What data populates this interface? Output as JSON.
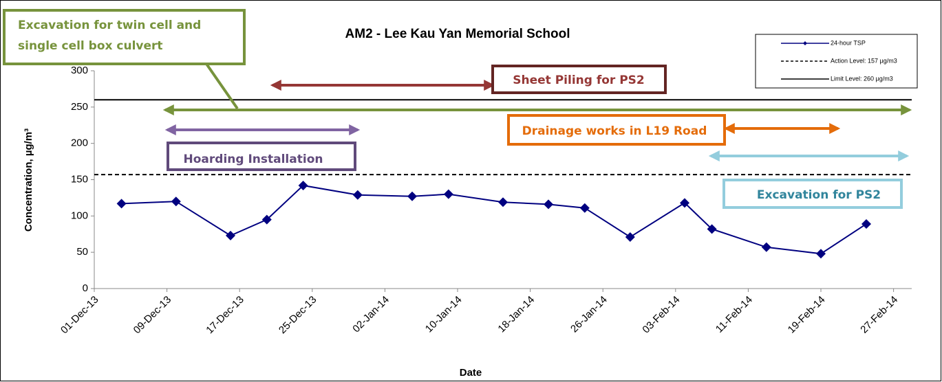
{
  "chart_data": {
    "type": "line",
    "title": "AM2 - Lee Kau Yan Memorial School",
    "x_label": "Date",
    "y_label": "Concentration, µg/m³",
    "x": [
      "2013-12-04",
      "2013-12-10",
      "2013-12-16",
      "2013-12-20",
      "2013-12-24",
      "2013-12-30",
      "2014-01-05",
      "2014-01-09",
      "2014-01-15",
      "2014-01-20",
      "2014-01-24",
      "2014-01-29",
      "2014-02-04",
      "2014-02-07",
      "2014-02-13",
      "2014-02-19",
      "2014-02-24"
    ],
    "series": [
      {
        "name": "24-hour TSP",
        "color": "#000080",
        "values": [
          117,
          120,
          73,
          95,
          142,
          129,
          127,
          130,
          119,
          116,
          111,
          71,
          118,
          82,
          57,
          48,
          89
        ]
      }
    ],
    "reference_lines": [
      {
        "name": "Action Level: 157 µg/m3",
        "value": 157,
        "color": "#000000",
        "dashed": true
      },
      {
        "name": "Limit Level: 260 µg/m3",
        "value": 260,
        "color": "#000000",
        "dashed": false
      }
    ],
    "xlim": [
      "2013-12-01",
      "2014-03-01"
    ],
    "xticks": [
      {
        "value": "2013-12-01",
        "label": "01-Dec-13"
      },
      {
        "value": "2013-12-09",
        "label": "09-Dec-13"
      },
      {
        "value": "2013-12-17",
        "label": "17-Dec-13"
      },
      {
        "value": "2013-12-25",
        "label": "25-Dec-13"
      },
      {
        "value": "2014-01-02",
        "label": "02-Jan-14"
      },
      {
        "value": "2014-01-10",
        "label": "10-Jan-14"
      },
      {
        "value": "2014-01-18",
        "label": "18-Jan-14"
      },
      {
        "value": "2014-01-26",
        "label": "26-Jan-14"
      },
      {
        "value": "2014-02-03",
        "label": "03-Feb-14"
      },
      {
        "value": "2014-02-11",
        "label": "11-Feb-14"
      },
      {
        "value": "2014-02-19",
        "label": "19-Feb-14"
      },
      {
        "value": "2014-02-27",
        "label": "27-Feb-14"
      }
    ],
    "ylim": [
      0,
      300
    ],
    "yticks": [
      0,
      50,
      100,
      150,
      200,
      250,
      300
    ],
    "grid": false,
    "legend": "top-right",
    "annotations": [
      [
        "Excavation for twin cell and",
        "single cell box culvert"
      ],
      [
        "Sheet Piling for PS2"
      ],
      [
        "Hoarding Installation"
      ],
      [
        "Drainage works in L19 Road"
      ],
      [
        "Excavation for PS2"
      ]
    ]
  }
}
